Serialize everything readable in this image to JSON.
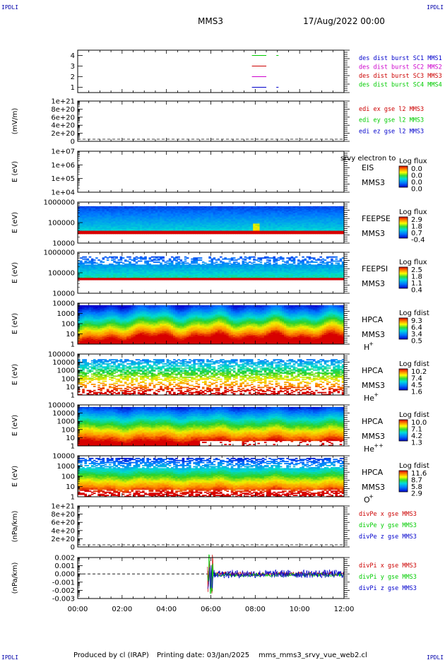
{
  "header": {
    "corner_label": "IPDLI",
    "spacecraft": "MMS3",
    "datetime": "17/Aug/2022 00:00"
  },
  "footer": {
    "produced_by": "Produced by cl (IRAP)",
    "printing_date": "Printing date: 03/Jan/2025",
    "script_name": "mms_mms3_srvy_vue_web2.cl"
  },
  "colors": {
    "mms1": "#00cc00",
    "mms2": "#cc00cc",
    "mms3": "#cc0000",
    "mms4": "#0000cc",
    "x": "#cc0000",
    "y": "#00cc00",
    "z": "#0000cc"
  },
  "chart_data": [
    {
      "id": "burst",
      "type": "line",
      "y_ticks": [
        "1",
        "2",
        "3",
        "4"
      ],
      "ylim": [
        0.5,
        4.5
      ],
      "legend": [
        {
          "label": "des dist burst SC1 MMS1",
          "color": "#0000cc"
        },
        {
          "label": "des dist burst SC2 MMS2",
          "color": "#cc00cc"
        },
        {
          "label": "des dist burst SC3 MMS3",
          "color": "#cc0000"
        },
        {
          "label": "des dist burst SC4 MMS4",
          "color": "#00cc00"
        }
      ],
      "series": [
        {
          "level": 4,
          "color": "#00cc00",
          "segments": [
            [
              7.85,
              8.5
            ],
            [
              8.95,
              9.05
            ]
          ]
        },
        {
          "level": 3,
          "color": "#cc0000",
          "segments": [
            [
              7.85,
              8.5
            ]
          ]
        },
        {
          "level": 2,
          "color": "#cc00cc",
          "segments": [
            [
              7.85,
              8.5
            ]
          ]
        },
        {
          "level": 1,
          "color": "#0000cc",
          "segments": [
            [
              7.85,
              8.5
            ],
            [
              8.95,
              9.05
            ]
          ]
        }
      ]
    },
    {
      "id": "edi",
      "type": "line",
      "ylabel": "(mV/m)",
      "y_ticks": [
        "0",
        "2e+20",
        "4e+20",
        "6e+20",
        "8e+20",
        "1e+21"
      ],
      "ylim": [
        0,
        1e+21
      ],
      "legend": [
        {
          "label": "edi ex gse l2 MMS3",
          "color": "#cc0000"
        },
        {
          "label": "edi ey gse l2 MMS3",
          "color": "#00cc00"
        },
        {
          "label": "edi ez gse l2 MMS3",
          "color": "#0000cc"
        }
      ]
    },
    {
      "id": "eis",
      "type": "heatmap",
      "ylabel": "E (eV)",
      "y_ticks": [
        "1e+04",
        "1e+05",
        "1e+06",
        "1e+07"
      ],
      "instrument": [
        "EIS",
        "MMS3"
      ],
      "overlay_text": "srvy electron to",
      "colorbar": {
        "title": "Log flux",
        "ticks": [
          "0.0",
          "0.0",
          "0.0",
          "0.0"
        ]
      }
    },
    {
      "id": "feepse",
      "type": "heatmap",
      "ylabel": "E (eV)",
      "y_ticks": [
        "10000",
        "100000",
        "1000000"
      ],
      "instrument": [
        "FEEPSE",
        "MMS3"
      ],
      "colorbar": {
        "title": "Log flux",
        "ticks": [
          "2.9",
          "1.8",
          "0.7",
          "-0.4"
        ]
      }
    },
    {
      "id": "feepsi",
      "type": "heatmap",
      "ylabel": "E (eV)",
      "y_ticks": [
        "10000",
        "100000",
        "1000000"
      ],
      "instrument": [
        "FEEPSI",
        "MMS3"
      ],
      "colorbar": {
        "title": "Log flux",
        "ticks": [
          "2.5",
          "1.8",
          "1.1",
          "0.4"
        ]
      }
    },
    {
      "id": "hpca_h",
      "type": "heatmap",
      "ylabel": "E (eV)",
      "y_ticks": [
        "1",
        "10",
        "100",
        "1000",
        "10000"
      ],
      "instrument": [
        "HPCA",
        "MMS3"
      ],
      "species": "H",
      "species_sup": "+",
      "colorbar": {
        "title": "Log fdist",
        "ticks": [
          "9.3",
          "6.4",
          "3.4",
          "0.5"
        ]
      }
    },
    {
      "id": "hpca_he",
      "type": "heatmap",
      "ylabel": "E (eV)",
      "y_ticks": [
        "1",
        "10",
        "100",
        "1000",
        "10000",
        "100000"
      ],
      "instrument": [
        "HPCA",
        "MMS3"
      ],
      "species": "He",
      "species_sup": "+",
      "colorbar": {
        "title": "Log fdist",
        "ticks": [
          "10.2",
          "7.4",
          "4.5",
          "1.6"
        ]
      }
    },
    {
      "id": "hpca_hepp",
      "type": "heatmap",
      "ylabel": "E (eV)",
      "y_ticks": [
        "1",
        "10",
        "100",
        "1000",
        "10000",
        "100000"
      ],
      "instrument": [
        "HPCA",
        "MMS3"
      ],
      "species": "He",
      "species_sup": "++",
      "colorbar": {
        "title": "Log fdist",
        "ticks": [
          "10.0",
          "7.1",
          "4.2",
          "1.3"
        ]
      }
    },
    {
      "id": "hpca_o",
      "type": "heatmap",
      "ylabel": "E (eV)",
      "y_ticks": [
        "1",
        "10",
        "100",
        "1000",
        "10000"
      ],
      "instrument": [
        "HPCA",
        "MMS3"
      ],
      "species": "O",
      "species_sup": "+",
      "colorbar": {
        "title": "Log fdist",
        "ticks": [
          "11.6",
          "8.7",
          "5.8",
          "2.9"
        ]
      }
    },
    {
      "id": "divpe",
      "type": "line",
      "ylabel": "(nPa/km)",
      "y_ticks": [
        "0",
        "2e+20",
        "4e+20",
        "6e+20",
        "8e+20",
        "1e+21"
      ],
      "ylim": [
        0,
        1e+21
      ],
      "legend": [
        {
          "label": "divPe x gse MMS3",
          "color": "#cc0000"
        },
        {
          "label": "divPe y gse MMS3",
          "color": "#00cc00"
        },
        {
          "label": "divPe z gse MMS3",
          "color": "#0000cc"
        }
      ]
    },
    {
      "id": "divpi",
      "type": "line",
      "ylabel": "(nPa/km)",
      "y_ticks": [
        "-0.003",
        "-0.002",
        "-0.001",
        "0.000",
        "0.001",
        "0.002"
      ],
      "ylim": [
        -0.0033,
        0.0025
      ],
      "data_start_hour": 5.85,
      "legend": [
        {
          "label": "divPi x gse MMS3",
          "color": "#cc0000"
        },
        {
          "label": "divPi y gse MMS3",
          "color": "#00cc00"
        },
        {
          "label": "divPi z gse MMS3",
          "color": "#0000cc"
        }
      ]
    }
  ],
  "x_axis": {
    "ticks": [
      "00:00",
      "02:00",
      "04:00",
      "06:00",
      "08:00",
      "10:00",
      "12:00"
    ],
    "range_hours": [
      0,
      12
    ]
  }
}
